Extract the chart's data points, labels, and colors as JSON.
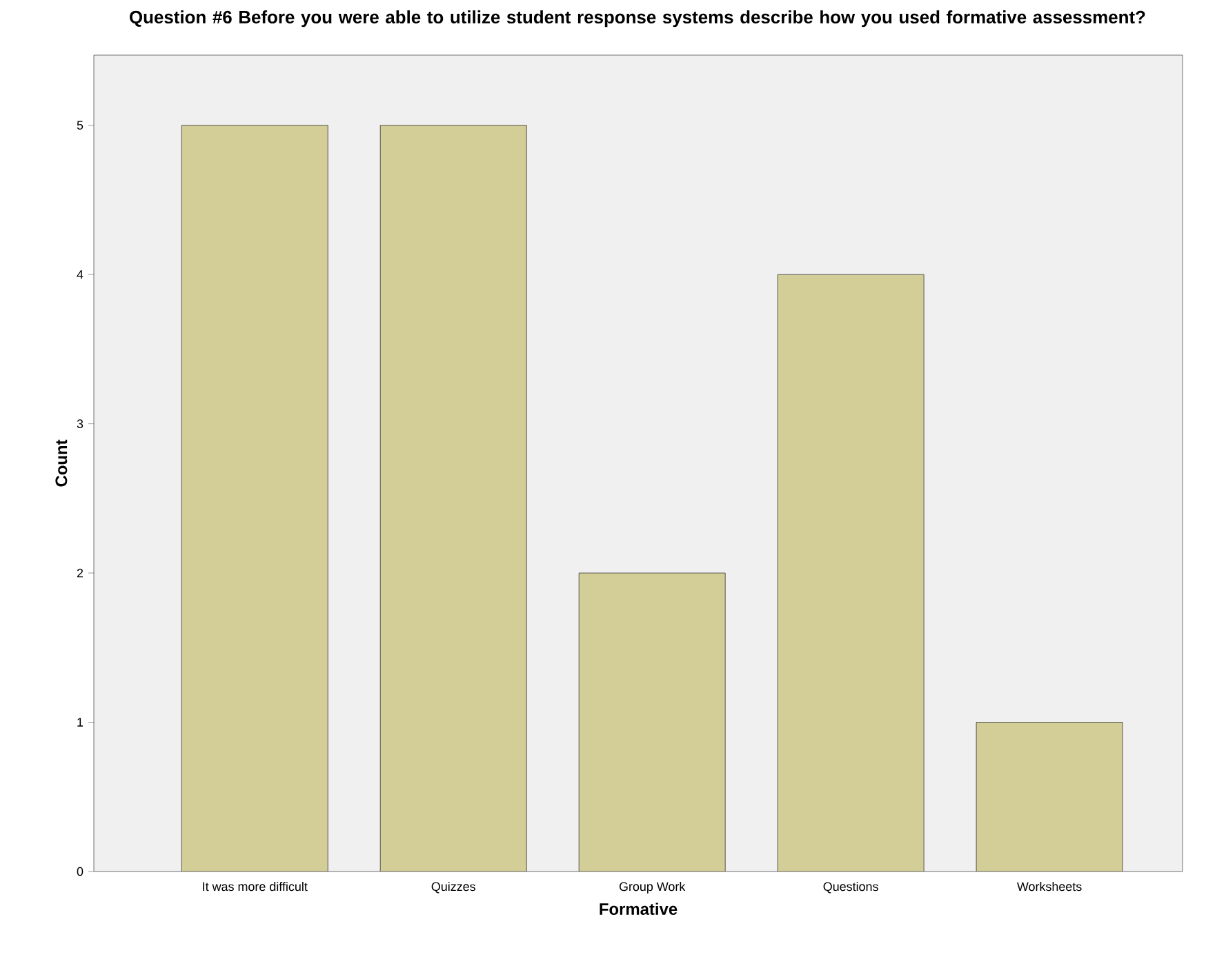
{
  "chart_data": {
    "type": "bar",
    "title": "Question #6 Before you were able to utilize student response systems describe how you used formative assessment?",
    "xlabel": "Formative",
    "ylabel": "Count",
    "categories": [
      "It was more difficult",
      "Quizzes",
      "Group Work",
      "Questions",
      "Worksheets"
    ],
    "values": [
      5,
      5,
      2,
      4,
      1
    ],
    "color": "#d3ce97",
    "ylim": [
      0,
      5.47
    ],
    "yticks": [
      0,
      1,
      2,
      3,
      4,
      5
    ],
    "grid": false
  }
}
